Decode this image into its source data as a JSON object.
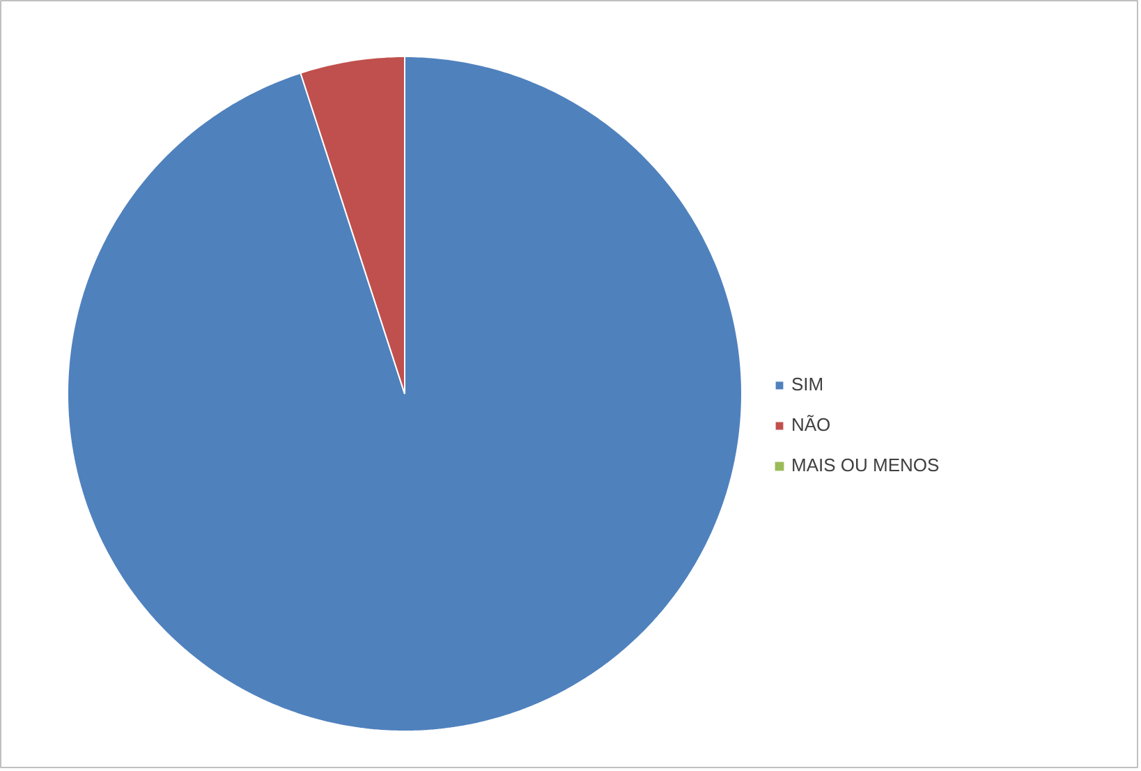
{
  "chart_data": {
    "type": "pie",
    "categories": [
      "SIM",
      "NÃO",
      "MAIS OU MENOS"
    ],
    "values": [
      95,
      5,
      0
    ],
    "colors": [
      "#4f81bd",
      "#c0504d",
      "#9bbb59"
    ],
    "legend": "right"
  }
}
